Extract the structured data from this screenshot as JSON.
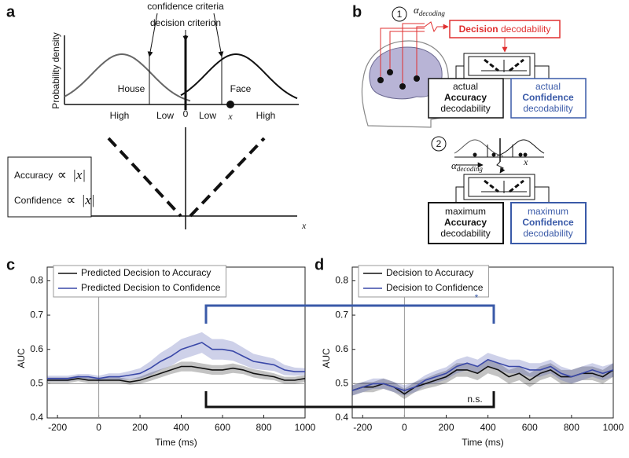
{
  "panel_labels": [
    "a",
    "b",
    "c",
    "d"
  ],
  "diagram_a": {
    "confidence_criteria": "confidence criteria",
    "decision_criterion": "decision criterion",
    "y_label": "Probability density",
    "classes": [
      "House",
      "Face"
    ],
    "scale_labels": [
      "High",
      "Low",
      "0",
      "Low",
      "x",
      "High"
    ],
    "relations": [
      {
        "name": "Accuracy",
        "symbol": "∝",
        "term": "|x|"
      },
      {
        "name": "Confidence",
        "symbol": "∝",
        "term": "|x|"
      }
    ],
    "x_label": "x"
  },
  "diagram_b": {
    "step_1": "1",
    "alpha": "α",
    "alpha_sub": "decoding",
    "decision": {
      "bold": "Decision",
      "rest": "decodability"
    },
    "actual_boxes": [
      [
        "actual",
        "Accuracy",
        "decodability"
      ],
      [
        "actual",
        "Confidence",
        "decodability"
      ]
    ],
    "step_2": "2",
    "small_x": "x",
    "maximum_boxes": [
      [
        "maximum",
        "Accuracy",
        "decodability"
      ],
      [
        "maximum",
        "Confidence",
        "decodability"
      ]
    ]
  },
  "annotations": {
    "significant": "*",
    "not_significant": "n.s."
  },
  "chart_data": [
    {
      "type": "line",
      "x_label": "Time (ms)",
      "y_label": "AUC",
      "x": [
        -250,
        -200,
        -150,
        -100,
        -50,
        0,
        50,
        100,
        150,
        200,
        250,
        300,
        350,
        400,
        450,
        500,
        550,
        600,
        650,
        700,
        750,
        800,
        850,
        900,
        950,
        1000
      ],
      "xlim": [
        -250,
        1000
      ],
      "xticks": [
        -200,
        0,
        200,
        400,
        600,
        800,
        1000
      ],
      "ylim": [
        0.4,
        0.84
      ],
      "yticks": [
        0.4,
        0.5,
        0.6,
        0.7,
        0.8
      ],
      "reference_y": 0.5,
      "reference_x": 0,
      "legend": "top-left",
      "series": [
        {
          "name": "Predicted Decision to Accuracy",
          "color": "#111111",
          "values": [
            0.51,
            0.51,
            0.51,
            0.515,
            0.51,
            0.51,
            0.51,
            0.51,
            0.505,
            0.51,
            0.52,
            0.53,
            0.54,
            0.55,
            0.55,
            0.545,
            0.54,
            0.54,
            0.545,
            0.54,
            0.53,
            0.525,
            0.52,
            0.51,
            0.51,
            0.515
          ],
          "errors": [
            0.008,
            0.008,
            0.008,
            0.008,
            0.008,
            0.008,
            0.008,
            0.008,
            0.008,
            0.01,
            0.012,
            0.012,
            0.012,
            0.014,
            0.014,
            0.014,
            0.014,
            0.014,
            0.014,
            0.012,
            0.012,
            0.012,
            0.01,
            0.01,
            0.01,
            0.01
          ]
        },
        {
          "name": "Predicted Decision to Confidence",
          "color": "#3a48a8",
          "values": [
            0.515,
            0.515,
            0.515,
            0.52,
            0.52,
            0.515,
            0.52,
            0.52,
            0.525,
            0.53,
            0.545,
            0.565,
            0.58,
            0.6,
            0.61,
            0.62,
            0.6,
            0.6,
            0.595,
            0.58,
            0.565,
            0.56,
            0.555,
            0.54,
            0.535,
            0.535
          ],
          "errors": [
            0.008,
            0.008,
            0.008,
            0.008,
            0.008,
            0.008,
            0.01,
            0.01,
            0.012,
            0.015,
            0.02,
            0.025,
            0.028,
            0.03,
            0.03,
            0.03,
            0.03,
            0.03,
            0.028,
            0.025,
            0.022,
            0.02,
            0.018,
            0.015,
            0.012,
            0.01
          ]
        }
      ]
    },
    {
      "type": "line",
      "x_label": "Time (ms)",
      "y_label": "AUC",
      "x": [
        -250,
        -200,
        -150,
        -100,
        -50,
        0,
        50,
        100,
        150,
        200,
        250,
        300,
        350,
        400,
        450,
        500,
        550,
        600,
        650,
        700,
        750,
        800,
        850,
        900,
        950,
        1000
      ],
      "xlim": [
        -250,
        1000
      ],
      "xticks": [
        -200,
        0,
        200,
        400,
        600,
        800,
        1000
      ],
      "ylim": [
        0.4,
        0.84
      ],
      "yticks": [
        0.4,
        0.5,
        0.6,
        0.7,
        0.8
      ],
      "reference_y": 0.5,
      "reference_x": 0,
      "legend": "top-left",
      "series": [
        {
          "name": "Decision to Accuracy",
          "color": "#111111",
          "values": [
            0.48,
            0.49,
            0.49,
            0.5,
            0.49,
            0.47,
            0.49,
            0.5,
            0.51,
            0.52,
            0.54,
            0.54,
            0.53,
            0.55,
            0.54,
            0.52,
            0.53,
            0.51,
            0.53,
            0.54,
            0.52,
            0.52,
            0.53,
            0.53,
            0.52,
            0.54
          ],
          "errors": [
            0.015,
            0.015,
            0.015,
            0.015,
            0.015,
            0.015,
            0.015,
            0.015,
            0.018,
            0.018,
            0.02,
            0.02,
            0.02,
            0.02,
            0.02,
            0.02,
            0.02,
            0.02,
            0.02,
            0.02,
            0.02,
            0.02,
            0.02,
            0.02,
            0.02,
            0.02
          ]
        },
        {
          "name": "Decision to Confidence",
          "color": "#3a48a8",
          "values": [
            0.48,
            0.49,
            0.5,
            0.5,
            0.49,
            0.48,
            0.49,
            0.51,
            0.52,
            0.53,
            0.55,
            0.56,
            0.55,
            0.57,
            0.56,
            0.55,
            0.55,
            0.54,
            0.54,
            0.55,
            0.53,
            0.52,
            0.53,
            0.54,
            0.53,
            0.54
          ],
          "errors": [
            0.015,
            0.015,
            0.015,
            0.015,
            0.015,
            0.015,
            0.015,
            0.015,
            0.018,
            0.018,
            0.02,
            0.02,
            0.02,
            0.02,
            0.02,
            0.02,
            0.02,
            0.02,
            0.02,
            0.02,
            0.02,
            0.02,
            0.02,
            0.02,
            0.02,
            0.02
          ]
        }
      ]
    }
  ]
}
